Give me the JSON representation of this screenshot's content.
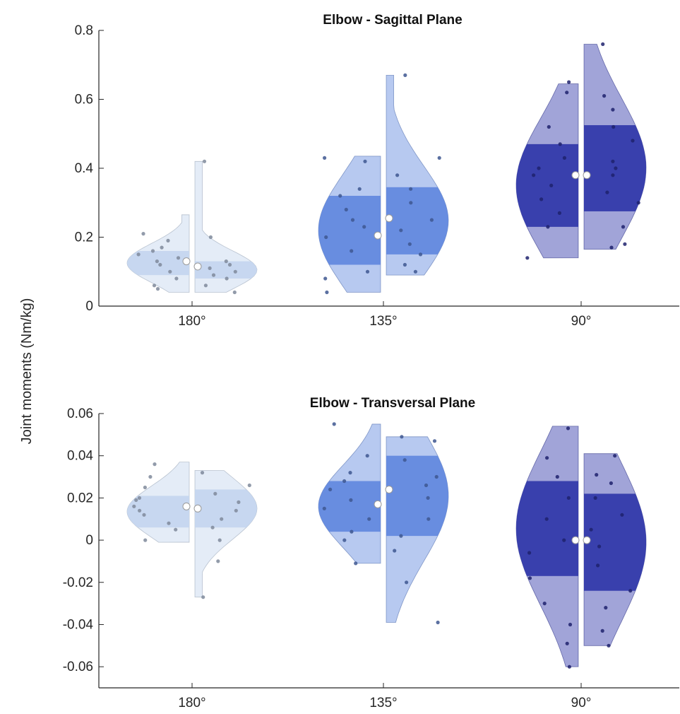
{
  "figure": {
    "ylabel": "Joint moments (Nm/kg)"
  },
  "chart_data": [
    {
      "type": "violin",
      "title": "Elbow - Sagittal Plane",
      "xlabel": "",
      "ylabel": "Joint moments (Nm/kg)",
      "categories": [
        "180°",
        "135°",
        "90°"
      ],
      "ylim": [
        0,
        0.8
      ],
      "yticks": [
        0,
        0.2,
        0.4,
        0.6,
        0.8
      ],
      "ytick_labels": [
        "0",
        "0.2",
        "0.4",
        "0.6",
        "0.8"
      ],
      "colors": [
        "#c3d5ee",
        "#5f86de",
        "#2e35a8"
      ],
      "groups": [
        {
          "category": "180°",
          "left": {
            "min": 0.04,
            "max": 0.265,
            "q1": 0.09,
            "q3": 0.16,
            "median": 0.13,
            "points": [
              0.05,
              0.06,
              0.08,
              0.1,
              0.12,
              0.13,
              0.14,
              0.15,
              0.16,
              0.17,
              0.19,
              0.21
            ]
          },
          "right": {
            "min": 0.04,
            "max": 0.42,
            "q1": 0.08,
            "q3": 0.13,
            "median": 0.115,
            "points": [
              0.04,
              0.06,
              0.08,
              0.09,
              0.1,
              0.11,
              0.12,
              0.13,
              0.2,
              0.42
            ]
          }
        },
        {
          "category": "135°",
          "left": {
            "min": 0.04,
            "max": 0.435,
            "q1": 0.12,
            "q3": 0.32,
            "median": 0.205,
            "points": [
              0.04,
              0.08,
              0.1,
              0.16,
              0.2,
              0.23,
              0.25,
              0.28,
              0.32,
              0.34,
              0.42,
              0.43
            ]
          },
          "right": {
            "min": 0.09,
            "max": 0.67,
            "q1": 0.15,
            "q3": 0.345,
            "median": 0.255,
            "points": [
              0.1,
              0.12,
              0.15,
              0.18,
              0.22,
              0.25,
              0.3,
              0.34,
              0.38,
              0.43,
              0.67
            ]
          }
        },
        {
          "category": "90°",
          "left": {
            "min": 0.14,
            "max": 0.645,
            "q1": 0.23,
            "q3": 0.47,
            "median": 0.38,
            "points": [
              0.14,
              0.23,
              0.27,
              0.31,
              0.35,
              0.38,
              0.4,
              0.43,
              0.47,
              0.52,
              0.62,
              0.65
            ]
          },
          "right": {
            "min": 0.165,
            "max": 0.76,
            "q1": 0.275,
            "q3": 0.525,
            "median": 0.38,
            "points": [
              0.17,
              0.18,
              0.23,
              0.3,
              0.33,
              0.38,
              0.4,
              0.42,
              0.48,
              0.52,
              0.57,
              0.61,
              0.76
            ]
          }
        }
      ]
    },
    {
      "type": "violin",
      "title": "Elbow - Transversal Plane",
      "xlabel": "",
      "ylabel": "Joint moments (Nm/kg)",
      "categories": [
        "180°",
        "135°",
        "90°"
      ],
      "ylim": [
        -0.07,
        0.06
      ],
      "yticks": [
        -0.06,
        -0.04,
        -0.02,
        0,
        0.02,
        0.04,
        0.06
      ],
      "ytick_labels": [
        "-0.06",
        "-0.04",
        "-0.02",
        "0",
        "0.02",
        "0.04",
        "0.06"
      ],
      "colors": [
        "#c3d5ee",
        "#5f86de",
        "#2e35a8"
      ],
      "groups": [
        {
          "category": "180°",
          "left": {
            "min": -0.001,
            "max": 0.037,
            "q1": 0.006,
            "q3": 0.021,
            "median": 0.016,
            "points": [
              0.0,
              0.005,
              0.008,
              0.012,
              0.014,
              0.016,
              0.019,
              0.02,
              0.025,
              0.03,
              0.036
            ]
          },
          "right": {
            "min": -0.027,
            "max": 0.033,
            "q1": 0.006,
            "q3": 0.024,
            "median": 0.015,
            "points": [
              -0.027,
              -0.01,
              0.0,
              0.006,
              0.01,
              0.014,
              0.018,
              0.022,
              0.026,
              0.032
            ]
          }
        },
        {
          "category": "135°",
          "left": {
            "min": -0.011,
            "max": 0.055,
            "q1": 0.004,
            "q3": 0.028,
            "median": 0.017,
            "points": [
              -0.011,
              0.0,
              0.004,
              0.01,
              0.015,
              0.019,
              0.024,
              0.028,
              0.032,
              0.04,
              0.055
            ]
          },
          "right": {
            "min": -0.039,
            "max": 0.049,
            "q1": 0.002,
            "q3": 0.04,
            "median": 0.024,
            "points": [
              -0.039,
              -0.02,
              -0.005,
              0.002,
              0.01,
              0.02,
              0.026,
              0.03,
              0.038,
              0.047,
              0.049
            ]
          }
        },
        {
          "category": "90°",
          "left": {
            "min": -0.06,
            "max": 0.054,
            "q1": -0.017,
            "q3": 0.028,
            "median": 0.0,
            "points": [
              -0.06,
              -0.049,
              -0.04,
              -0.03,
              -0.018,
              -0.006,
              0.0,
              0.01,
              0.02,
              0.03,
              0.039,
              0.053
            ]
          },
          "right": {
            "min": -0.05,
            "max": 0.041,
            "q1": -0.024,
            "q3": 0.022,
            "median": 0.0,
            "points": [
              -0.05,
              -0.043,
              -0.032,
              -0.024,
              -0.012,
              -0.003,
              0.005,
              0.012,
              0.02,
              0.027,
              0.031,
              0.04
            ]
          }
        }
      ]
    }
  ]
}
